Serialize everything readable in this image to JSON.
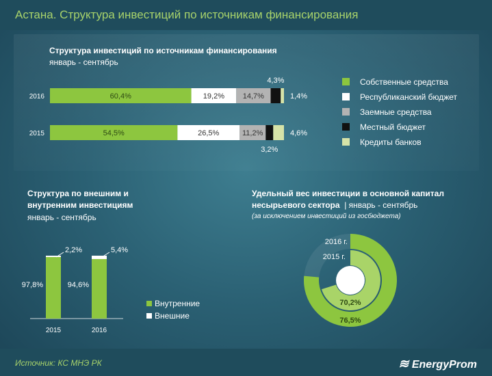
{
  "header": {
    "title": "Астана. Структура инвестиций  по источникам финансирования"
  },
  "footer": {
    "source": "Источник: КС МНЭ РК",
    "brand": "EnergyProm"
  },
  "colors": {
    "own": "#8dc63f",
    "republic": "#ffffff",
    "loan": "#b3b3b3",
    "local": "#111111",
    "bank": "#d6e3a8",
    "ring2016": "#8dc63f",
    "ring2015": "#a9d468"
  },
  "chart_data": [
    {
      "type": "bar",
      "orientation": "horizontal-stacked",
      "title": "Структура  инвестиций  по источникам   финансирования",
      "subtitle": "январь - сентябрь",
      "categories": [
        "2016",
        "2015"
      ],
      "series": [
        {
          "name": "Собственные средства",
          "values": [
            60.4,
            54.5
          ],
          "labels": [
            "60,4%",
            "54,5%"
          ],
          "color": "#8dc63f"
        },
        {
          "name": "Республиканский бюджет",
          "values": [
            19.2,
            26.5
          ],
          "labels": [
            "19,2%",
            "26,5%"
          ],
          "color": "#ffffff"
        },
        {
          "name": "Заемные средства",
          "values": [
            14.7,
            11.2
          ],
          "labels": [
            "14,7%",
            "11,2%"
          ],
          "color": "#b3b3b3"
        },
        {
          "name": "Местный бюджет",
          "values": [
            4.3,
            3.2
          ],
          "labels": [
            "4,3%",
            "3,2%"
          ],
          "color": "#111111"
        },
        {
          "name": "Кредиты банков",
          "values": [
            1.4,
            4.6
          ],
          "labels": [
            "1,4%",
            "4,6%"
          ],
          "color": "#d6e3a8"
        }
      ]
    },
    {
      "type": "bar",
      "orientation": "vertical-stacked",
      "title": "Структура  по внешним  и внутренним  инвестициям",
      "subtitle": "январь - сентябрь",
      "categories": [
        "2015",
        "2016"
      ],
      "series": [
        {
          "name": "Внутренние",
          "values": [
            97.8,
            94.6
          ],
          "labels": [
            "97,8%",
            "94,6%"
          ],
          "color": "#8dc63f"
        },
        {
          "name": "Внешние",
          "values": [
            2.2,
            5.4
          ],
          "labels": [
            "2,2%",
            "5,4%"
          ],
          "color": "#ffffff"
        }
      ]
    },
    {
      "type": "pie",
      "variant": "concentric-rings",
      "title": "Удельный вес инвестиции  в основной  капитал несырьевого сектора",
      "subtitle": "январь - сентябрь",
      "note": "(за исключением инвестиций из госбюджета)",
      "series": [
        {
          "name": "2016 г.",
          "value": 76.5,
          "label": "76,5%"
        },
        {
          "name": "2015 г.",
          "value": 70.2,
          "label": "70,2%"
        }
      ]
    }
  ]
}
